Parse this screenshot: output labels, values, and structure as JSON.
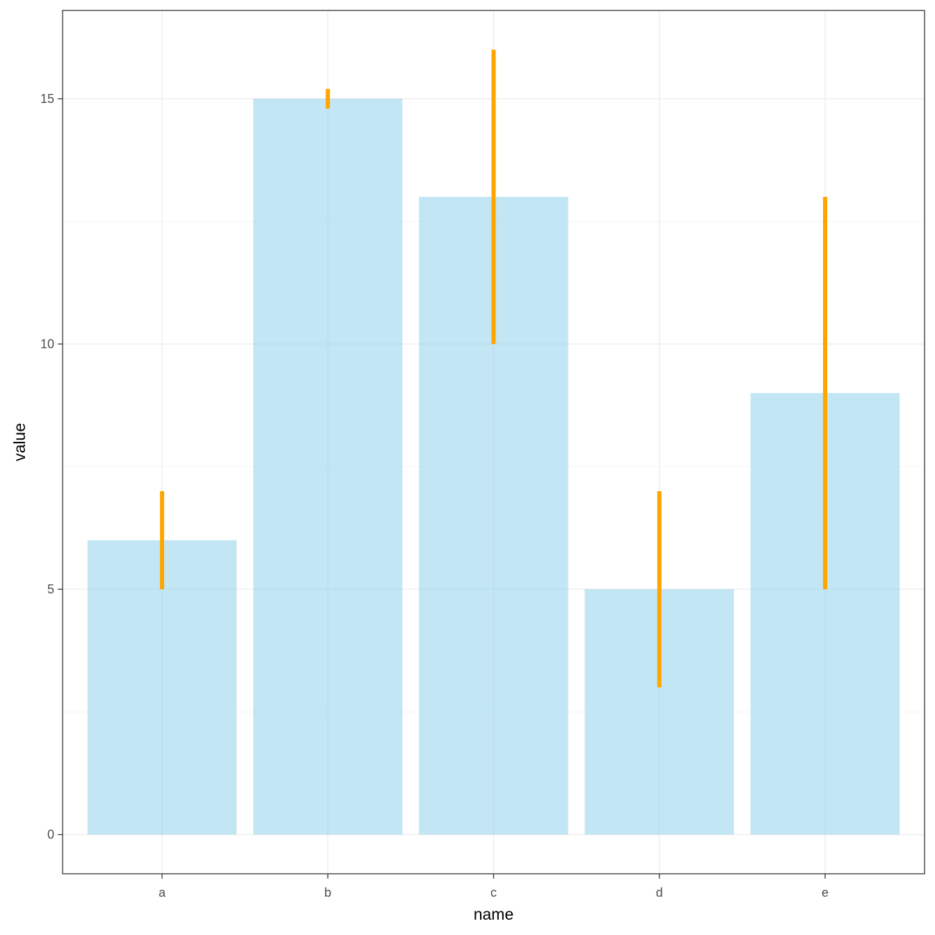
{
  "chart_data": {
    "type": "bar",
    "title": "",
    "xlabel": "name",
    "ylabel": "value",
    "categories": [
      "a",
      "b",
      "c",
      "d",
      "e"
    ],
    "values": [
      6,
      15,
      13,
      5,
      9
    ],
    "error_bars": [
      {
        "category": "a",
        "low": 5,
        "high": 7
      },
      {
        "category": "b",
        "low": 14.8,
        "high": 15.2
      },
      {
        "category": "c",
        "low": 10,
        "high": 16
      },
      {
        "category": "d",
        "low": 3,
        "high": 7
      },
      {
        "category": "e",
        "low": 5,
        "high": 13
      }
    ],
    "ylim": [
      -0.8,
      16.8
    ],
    "y_ticks": [
      0,
      5,
      10,
      15
    ],
    "y_tick_labels": [
      "0",
      "5",
      "10",
      "15"
    ],
    "grid": true,
    "theme": "bw",
    "colors": {
      "bar_fill": "#87ceeb",
      "bar_opacity": 0.5,
      "error_bar": "#ffa500",
      "grid_major": "#ebebeb",
      "grid_minor": "#f3f3f3",
      "panel_border": "#333333"
    }
  }
}
